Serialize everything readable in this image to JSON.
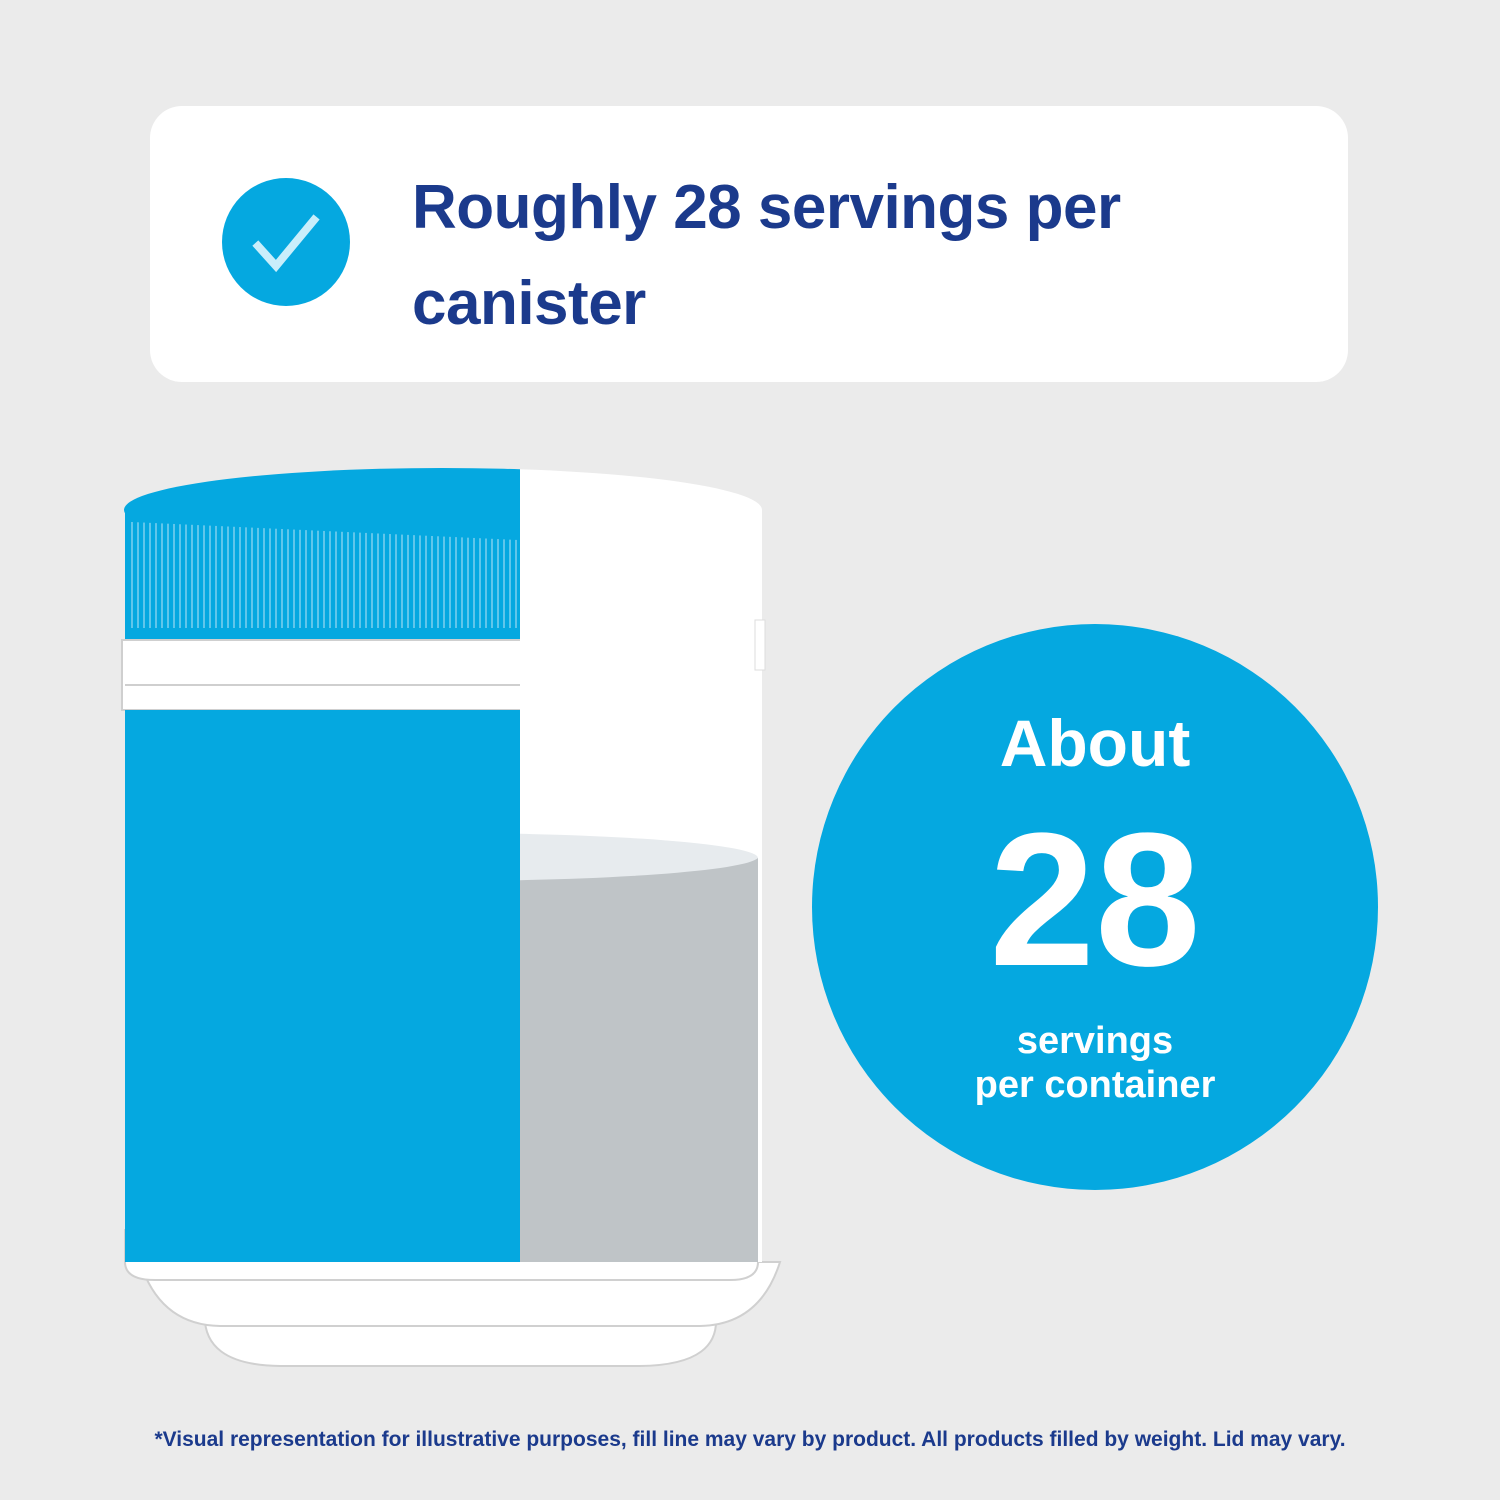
{
  "header": {
    "title": "Roughly 28 servings per canister"
  },
  "badge": {
    "line1": "About",
    "number": "28",
    "line2": "servings",
    "line3": "per container"
  },
  "footnote": "*Visual representation for illustrative purposes, fill line may vary by product. All products filled by weight. Lid may vary."
}
